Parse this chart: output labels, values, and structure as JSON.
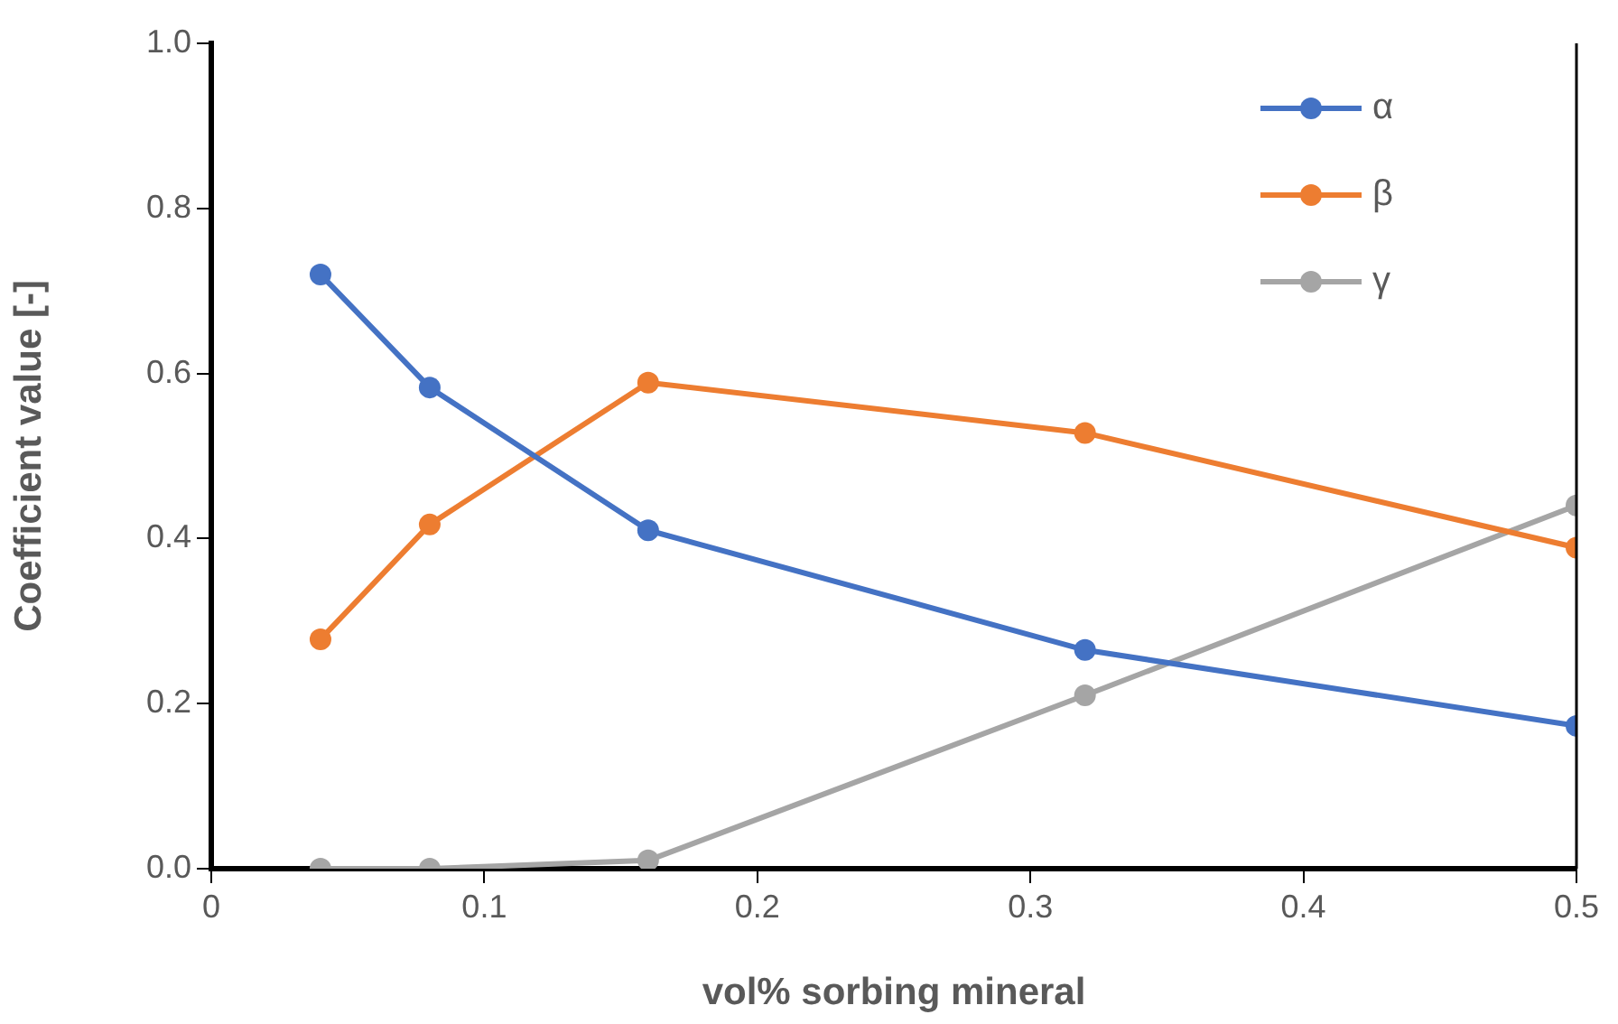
{
  "chart_data": {
    "type": "line",
    "xlabel": "vol% sorbing mineral",
    "ylabel": "Coefficient value [-]",
    "xlim": [
      0,
      0.5
    ],
    "xticks": [
      0,
      0.1,
      0.2,
      0.3,
      0.4,
      0.5
    ],
    "ylim": [
      0,
      1
    ],
    "yticks": [
      {
        "value": 0,
        "label": "0.0"
      },
      {
        "value": 0.2,
        "label": "0.2"
      },
      {
        "value": 0.4,
        "label": "0.4"
      },
      {
        "value": 0.6,
        "label": "0.6"
      },
      {
        "value": 0.8,
        "label": "0.8"
      },
      {
        "value": 1,
        "label": "1.0"
      }
    ],
    "x": [
      0.04,
      0.08,
      0.16,
      0.32,
      0.5
    ],
    "series": [
      {
        "name": "α",
        "color": "#4472c4",
        "values": [
          0.72,
          0.583,
          0.41,
          0.265,
          0.173
        ]
      },
      {
        "name": "β",
        "color": "#ed7d31",
        "values": [
          0.278,
          0.417,
          0.589,
          0.528,
          0.389
        ]
      },
      {
        "name": "γ",
        "color": "#a5a5a5",
        "values": [
          0,
          0,
          0.01,
          0.21,
          0.44
        ]
      }
    ],
    "marker": "circle",
    "line_style": "solid",
    "grid": false,
    "legend": "top right"
  }
}
